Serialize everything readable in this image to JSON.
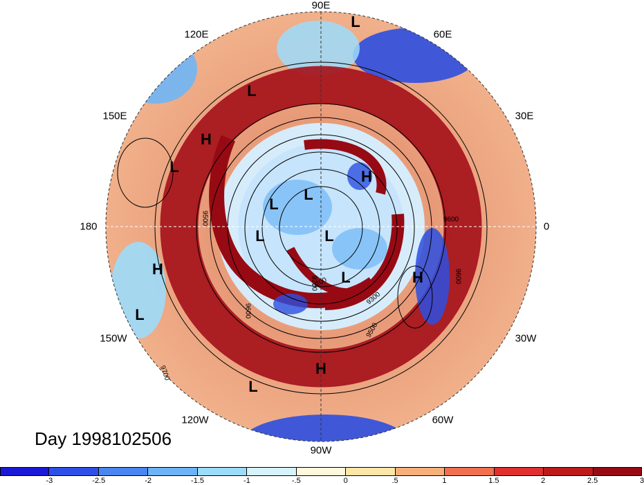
{
  "map": {
    "lon_labels": {
      "n": "90E",
      "ne": "60E",
      "ene": "30E",
      "e": "0",
      "ese": "30W",
      "se": "60W",
      "s": "90W",
      "sw": "120W",
      "wsw": "150W",
      "w": "180",
      "wnw": "150E",
      "nw": "120E"
    },
    "systems": [
      "L",
      "L",
      "H",
      "L",
      "H",
      "L",
      "L",
      "L",
      "L",
      "L",
      "H",
      "H",
      "L",
      "H",
      "L"
    ],
    "contour_labels": [
      "9600",
      "9600",
      "9600",
      "9500",
      "9500",
      "9300",
      "9200",
      "9700",
      "9200"
    ]
  },
  "title": {
    "date": "Day 1998102506"
  },
  "colorbar": {
    "colors": [
      "#1a1ad6",
      "#2e50e8",
      "#4a86f0",
      "#6cb4f6",
      "#9cdcfb",
      "#d6f3fd",
      "#fff8dc",
      "#fde6a8",
      "#f8b07a",
      "#f07050",
      "#e03030",
      "#bd1a1a",
      "#970a14"
    ],
    "ticks": [
      "-3",
      "-2.5",
      "-2",
      "-1.5",
      "-1",
      "-.5",
      "0",
      ".5",
      "1",
      "1.5",
      "2",
      "2.5",
      "3"
    ]
  }
}
